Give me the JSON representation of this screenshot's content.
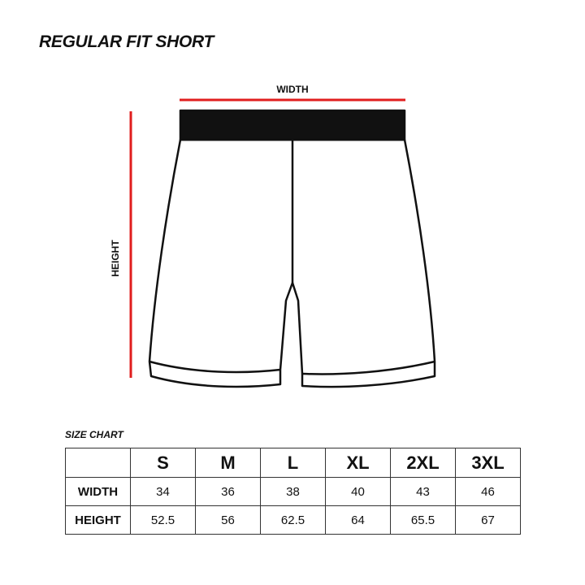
{
  "title": "REGULAR FIT SHORT",
  "diagram": {
    "width_label": "WIDTH",
    "height_label": "HEIGHT",
    "measure_color": "#e01e1e"
  },
  "size_chart": {
    "label": "SIZE CHART",
    "sizes": [
      "S",
      "M",
      "L",
      "XL",
      "2XL",
      "3XL"
    ],
    "rows": [
      {
        "label": "WIDTH",
        "values": [
          "34",
          "36",
          "38",
          "40",
          "43",
          "46"
        ]
      },
      {
        "label": "HEIGHT",
        "values": [
          "52.5",
          "56",
          "62.5",
          "64",
          "65.5",
          "67"
        ]
      }
    ]
  }
}
